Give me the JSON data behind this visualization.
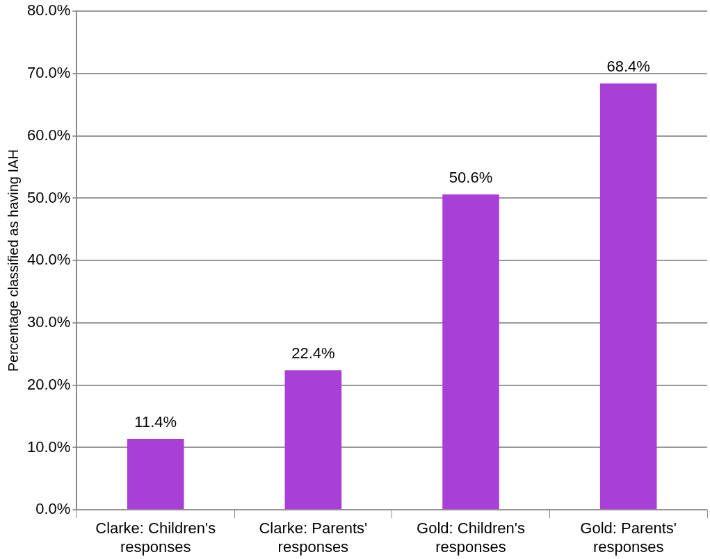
{
  "chart_data": {
    "type": "bar",
    "ylabel": "Percentage classified as having IAH",
    "categories": [
      "Clarke: Children's responses",
      "Clarke: Parents' responses",
      "Gold: Children's responses",
      "Gold: Parents' responses"
    ],
    "values": [
      11.4,
      22.4,
      50.6,
      68.4
    ],
    "value_labels": [
      "11.4%",
      "22.4%",
      "50.6%",
      "68.4%"
    ],
    "color": "#a83fd6",
    "ylim": [
      0,
      80
    ],
    "yticks": [
      {
        "value": 0,
        "label": "0.0%"
      },
      {
        "value": 10,
        "label": "10.0%"
      },
      {
        "value": 20,
        "label": "20.0%"
      },
      {
        "value": 30,
        "label": "30.0%"
      },
      {
        "value": 40,
        "label": "40.0%"
      },
      {
        "value": 50,
        "label": "50.0%"
      },
      {
        "value": 60,
        "label": "60.0%"
      },
      {
        "value": 70,
        "label": "70.0%"
      },
      {
        "value": 80,
        "label": "80.0%"
      }
    ],
    "grid": "y",
    "legend": false
  }
}
